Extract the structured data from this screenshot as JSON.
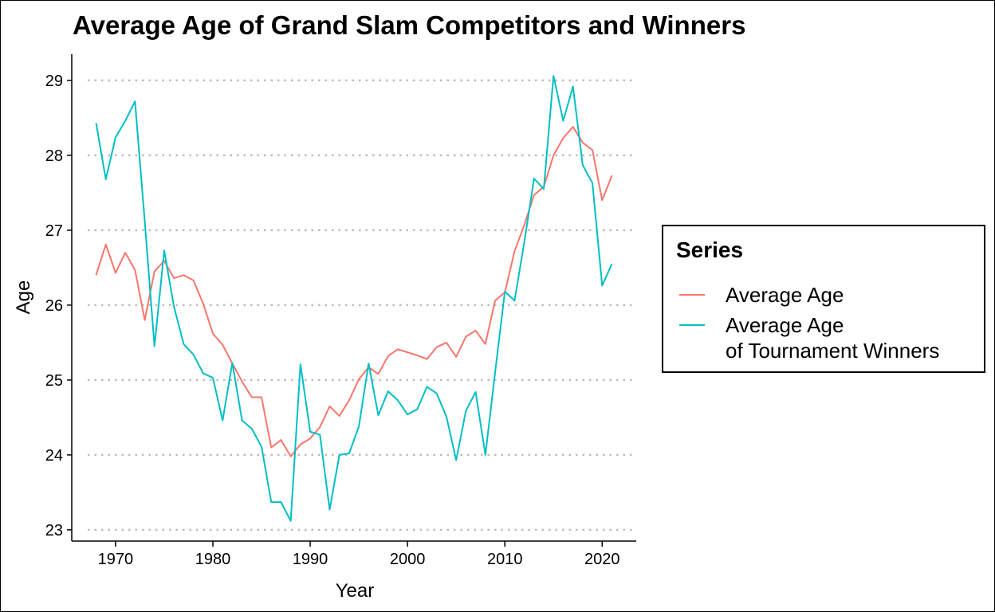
{
  "chart_data": {
    "type": "line",
    "title": "Average Age of Grand Slam Competitors and Winners",
    "xlabel": "Year",
    "ylabel": "Age",
    "xlim": [
      1965.5,
      2023.5
    ],
    "ylim": [
      22.85,
      29.35
    ],
    "xticks": [
      1970,
      1980,
      1990,
      2000,
      2010,
      2020
    ],
    "yticks": [
      23,
      24,
      25,
      26,
      27,
      28,
      29
    ],
    "grid": "horizontal-dotted",
    "legend": {
      "title": "Series",
      "position": "right"
    },
    "x": [
      1968,
      1969,
      1970,
      1971,
      1972,
      1973,
      1974,
      1975,
      1976,
      1977,
      1978,
      1979,
      1980,
      1981,
      1982,
      1983,
      1984,
      1985,
      1986,
      1987,
      1988,
      1989,
      1990,
      1991,
      1992,
      1993,
      1994,
      1995,
      1996,
      1997,
      1998,
      1999,
      2000,
      2001,
      2002,
      2003,
      2004,
      2005,
      2006,
      2007,
      2008,
      2009,
      2010,
      2011,
      2012,
      2013,
      2014,
      2015,
      2016,
      2017,
      2018,
      2019,
      2020,
      2021
    ],
    "series": [
      {
        "name": "Average Age",
        "color": "#F8766D",
        "values": [
          26.4,
          26.81,
          26.43,
          26.7,
          26.47,
          25.8,
          26.45,
          26.59,
          26.36,
          26.4,
          26.33,
          26.02,
          25.62,
          25.47,
          25.22,
          24.98,
          24.77,
          24.77,
          24.1,
          24.2,
          23.98,
          24.14,
          24.22,
          24.37,
          24.65,
          24.52,
          24.73,
          25.01,
          25.17,
          25.08,
          25.32,
          25.41,
          25.37,
          25.33,
          25.28,
          25.44,
          25.5,
          25.31,
          25.58,
          25.66,
          25.48,
          26.06,
          26.17,
          26.72,
          27.07,
          27.47,
          27.58,
          28.0,
          28.23,
          28.38,
          28.17,
          28.07,
          27.4,
          27.73
        ]
      },
      {
        "name": "Average Age\nof Tournament Winners",
        "color": "#00BFC4",
        "values": [
          28.43,
          27.68,
          28.24,
          28.46,
          28.72,
          27.12,
          25.45,
          26.73,
          25.98,
          25.48,
          25.34,
          25.09,
          25.03,
          24.46,
          25.23,
          24.46,
          24.35,
          24.11,
          23.37,
          23.37,
          23.12,
          25.21,
          24.31,
          24.27,
          23.27,
          24.0,
          24.02,
          24.38,
          25.22,
          24.53,
          24.85,
          24.73,
          24.54,
          24.61,
          24.91,
          24.82,
          24.51,
          23.93,
          24.59,
          24.84,
          24.0,
          25.1,
          26.18,
          26.06,
          26.84,
          27.69,
          27.55,
          29.06,
          28.46,
          28.92,
          27.87,
          27.63,
          26.26,
          26.55
        ]
      }
    ]
  }
}
